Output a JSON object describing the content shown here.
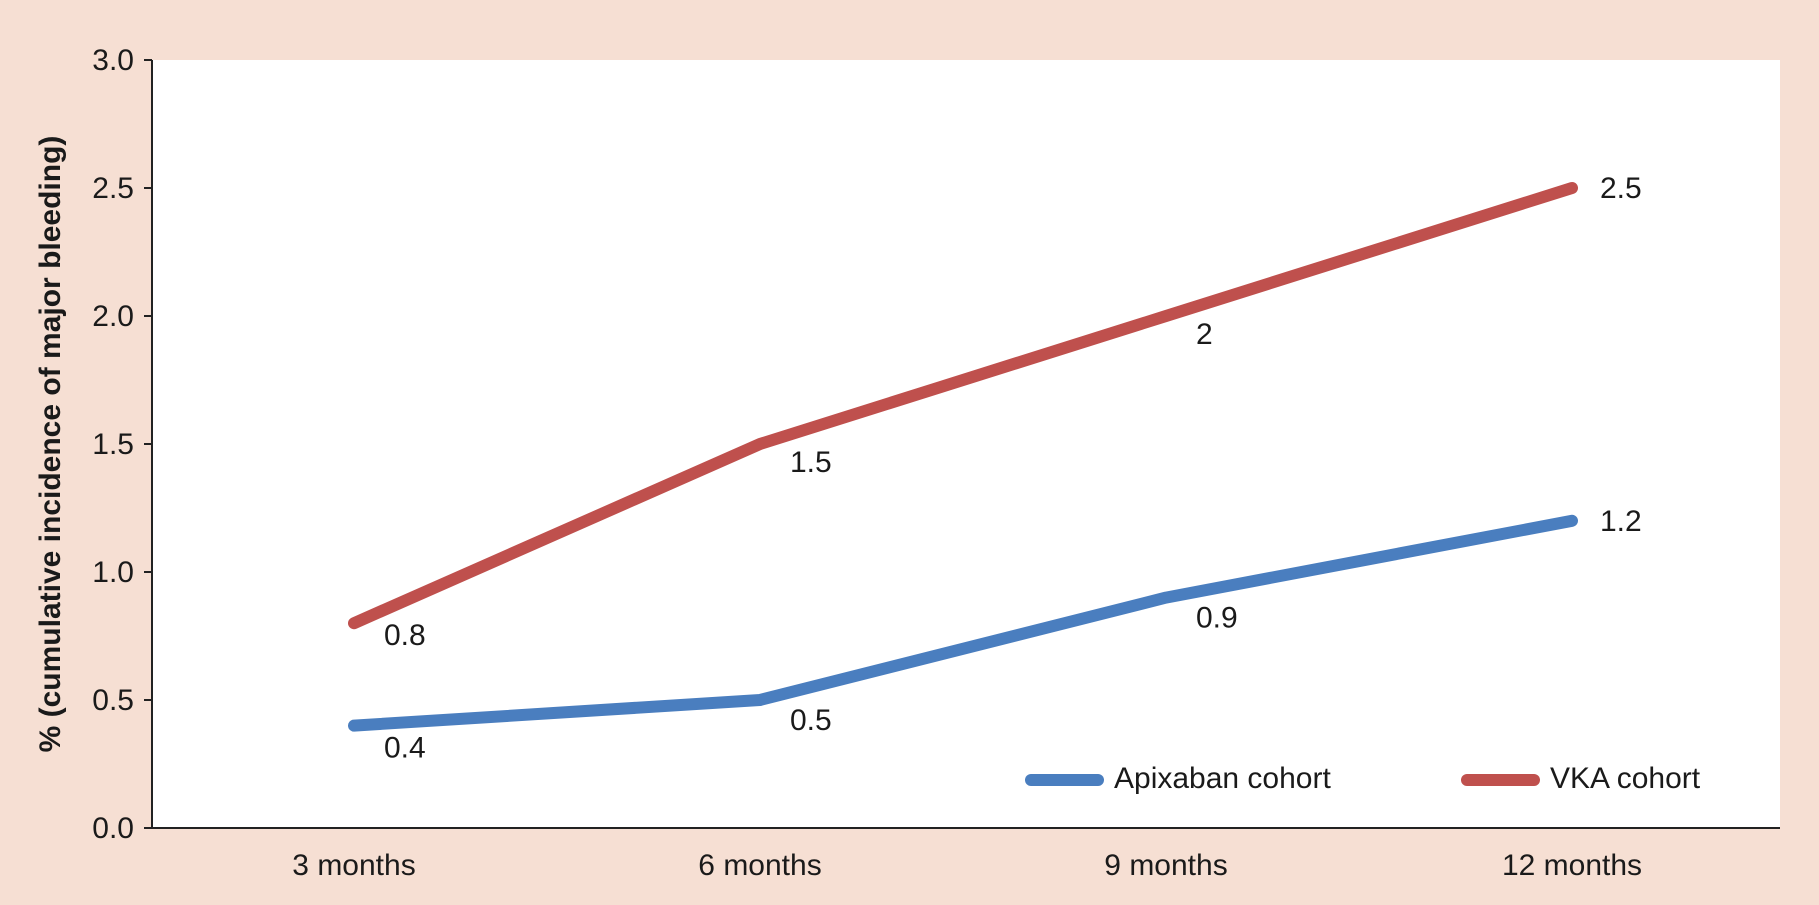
{
  "chart_data": {
    "type": "line",
    "categories": [
      "3 months",
      "6 months",
      "9 months",
      "12 months"
    ],
    "series": [
      {
        "name": "Apixaban cohort",
        "values": [
          0.4,
          0.5,
          0.9,
          1.2
        ],
        "color": "#4a7ebf"
      },
      {
        "name": "VKA cohort",
        "values": [
          0.8,
          1.5,
          2,
          2.5
        ],
        "color": "#bf504d"
      }
    ],
    "ylabel": "% (cumulative incidence of major bleeding)",
    "xlabel": "",
    "ylim": [
      0,
      3.0
    ],
    "yticks": [
      "0.0",
      "0.5",
      "1.0",
      "1.5",
      "2.0",
      "2.5",
      "3.0"
    ],
    "grid": false,
    "legend_position": "bottom-right",
    "colors": {
      "background": "#f6dfd3",
      "plot_area": "#ffffff"
    }
  }
}
